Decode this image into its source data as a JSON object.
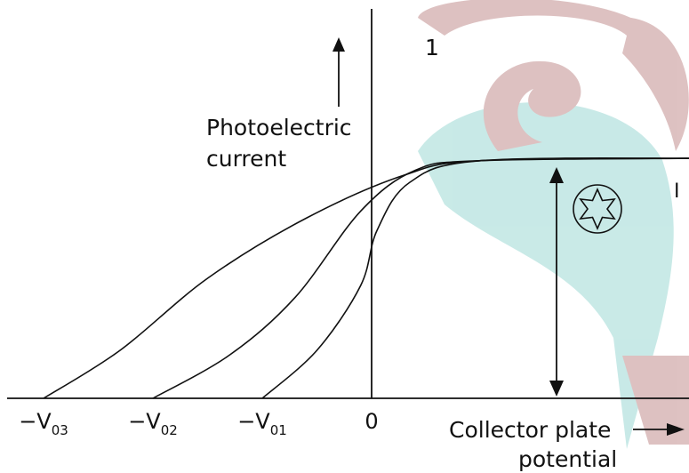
{
  "colors": {
    "watermark_teal": "#bfe6e3",
    "watermark_rose": "#d8b7b7",
    "ink": "#111111"
  },
  "labels": {
    "y_axis": [
      "Photoelectric",
      "current"
    ],
    "x_axis": [
      "Collector plate",
      "potential"
    ],
    "marker_top": "1",
    "marker_right": "I",
    "origin": "0"
  },
  "chart_data": {
    "type": "line",
    "title": "",
    "ylabel": "Photoelectric current",
    "xlabel": "Collector plate potential",
    "x_ticks": [
      {
        "main": "−V",
        "sub": "03",
        "x": -3
      },
      {
        "main": "−V",
        "sub": "02",
        "x": -2
      },
      {
        "main": "−V",
        "sub": "01",
        "x": -1
      },
      {
        "main": "0",
        "sub": "",
        "x": 0
      }
    ],
    "xlim": [
      -3.5,
      3
    ],
    "ylim": [
      0,
      1.2
    ],
    "saturation_current": 1,
    "series": [
      {
        "stopping_potential": -3,
        "points": [
          [
            -3,
            0
          ],
          [
            -2.3,
            0.2
          ],
          [
            -1.5,
            0.5
          ],
          [
            -0.6,
            0.75
          ],
          [
            0.3,
            0.93
          ],
          [
            1,
            0.99
          ],
          [
            3,
            1
          ]
        ]
      },
      {
        "stopping_potential": -2,
        "points": [
          [
            -2,
            0
          ],
          [
            -1.3,
            0.18
          ],
          [
            -0.7,
            0.42
          ],
          [
            -0.1,
            0.78
          ],
          [
            0.4,
            0.95
          ],
          [
            1,
            0.99
          ],
          [
            3,
            1
          ]
        ]
      },
      {
        "stopping_potential": -1,
        "points": [
          [
            -1,
            0
          ],
          [
            -0.5,
            0.2
          ],
          [
            -0.1,
            0.47
          ],
          [
            0.05,
            0.7
          ],
          [
            0.35,
            0.9
          ],
          [
            1,
            0.99
          ],
          [
            3,
            1
          ]
        ]
      }
    ]
  }
}
